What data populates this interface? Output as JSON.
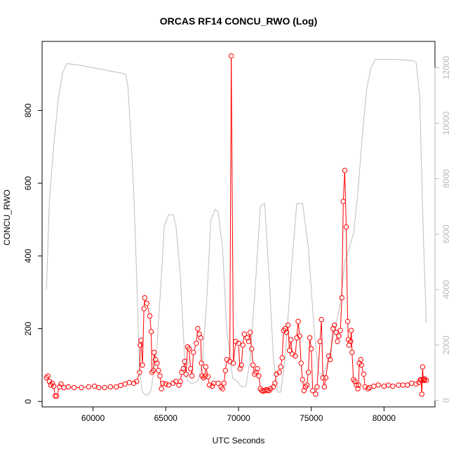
{
  "chart_data": {
    "type": "line",
    "title": "ORCAS RF14 CONCU_RWO (Log)",
    "xlabel": "UTC Seconds",
    "ylabel": "CONCU_RWO",
    "xlim": [
      56500,
      83500
    ],
    "ylim": [
      -15,
      990
    ],
    "y2lim": [
      -230,
      12950
    ],
    "x_ticks": [
      60000,
      65000,
      70000,
      75000,
      80000
    ],
    "y_ticks": [
      0,
      200,
      400,
      600,
      800
    ],
    "y2_ticks": [
      0,
      2000,
      4000,
      6000,
      8000,
      10000,
      12000
    ],
    "grid": false,
    "legend": "none",
    "colors": {
      "concu": "#ff0000",
      "altitude": "#bebebe",
      "axis": "#000000",
      "right_axis": "#b8b8b8"
    },
    "series": [
      {
        "axis": "left",
        "style": "points+lines",
        "points": [
          [
            56800,
            65
          ],
          [
            56900,
            70
          ],
          [
            57000,
            55
          ],
          [
            57100,
            45
          ],
          [
            57200,
            50
          ],
          [
            57300,
            42
          ],
          [
            57400,
            15
          ],
          [
            57500,
            15
          ],
          [
            57700,
            40
          ],
          [
            57800,
            48
          ],
          [
            58000,
            38
          ],
          [
            58300,
            40
          ],
          [
            58700,
            38
          ],
          [
            59200,
            38
          ],
          [
            59700,
            40
          ],
          [
            60100,
            42
          ],
          [
            60400,
            38
          ],
          [
            60800,
            38
          ],
          [
            61200,
            40
          ],
          [
            61600,
            40
          ],
          [
            61900,
            44
          ],
          [
            62200,
            48
          ],
          [
            62500,
            52
          ],
          [
            62800,
            50
          ],
          [
            63000,
            55
          ],
          [
            63200,
            80
          ],
          [
            63250,
            155
          ],
          [
            63300,
            168
          ],
          [
            63400,
            100
          ],
          [
            63500,
            255
          ],
          [
            63550,
            285
          ],
          [
            63700,
            270
          ],
          [
            63900,
            235
          ],
          [
            64000,
            192
          ],
          [
            64050,
            80
          ],
          [
            64150,
            85
          ],
          [
            64200,
            135
          ],
          [
            64300,
            115
          ],
          [
            64400,
            105
          ],
          [
            64500,
            85
          ],
          [
            64600,
            70
          ],
          [
            64700,
            35
          ],
          [
            64800,
            50
          ],
          [
            65000,
            48
          ],
          [
            65200,
            45
          ],
          [
            65500,
            50
          ],
          [
            65700,
            55
          ],
          [
            65900,
            45
          ],
          [
            66000,
            55
          ],
          [
            66100,
            80
          ],
          [
            66200,
            90
          ],
          [
            66300,
            110
          ],
          [
            66400,
            75
          ],
          [
            66500,
            150
          ],
          [
            66600,
            145
          ],
          [
            66700,
            90
          ],
          [
            66800,
            70
          ],
          [
            66900,
            135
          ],
          [
            67100,
            160
          ],
          [
            67200,
            200
          ],
          [
            67300,
            185
          ],
          [
            67400,
            175
          ],
          [
            67450,
            105
          ],
          [
            67500,
            70
          ],
          [
            67600,
            65
          ],
          [
            67700,
            70
          ],
          [
            67750,
            95
          ],
          [
            67900,
            68
          ],
          [
            68000,
            45
          ],
          [
            68200,
            42
          ],
          [
            68300,
            50
          ],
          [
            68600,
            50
          ],
          [
            68800,
            40
          ],
          [
            68900,
            35
          ],
          [
            69000,
            50
          ],
          [
            69100,
            85
          ],
          [
            69200,
            115
          ],
          [
            69400,
            110
          ],
          [
            69500,
            950
          ],
          [
            69650,
            105
          ],
          [
            69800,
            165
          ],
          [
            70000,
            160
          ],
          [
            70100,
            90
          ],
          [
            70200,
            100
          ],
          [
            70300,
            155
          ],
          [
            70400,
            185
          ],
          [
            70600,
            175
          ],
          [
            70700,
            165
          ],
          [
            70800,
            190
          ],
          [
            70900,
            145
          ],
          [
            71000,
            100
          ],
          [
            71100,
            75
          ],
          [
            71200,
            80
          ],
          [
            71300,
            90
          ],
          [
            71400,
            70
          ],
          [
            71500,
            35
          ],
          [
            71600,
            30
          ],
          [
            71700,
            28
          ],
          [
            71800,
            30
          ],
          [
            71900,
            32
          ],
          [
            72000,
            30
          ],
          [
            72100,
            30
          ],
          [
            72200,
            35
          ],
          [
            72400,
            40
          ],
          [
            72500,
            50
          ],
          [
            72600,
            75
          ],
          [
            72800,
            80
          ],
          [
            72900,
            95
          ],
          [
            73000,
            120
          ],
          [
            73100,
            195
          ],
          [
            73200,
            200
          ],
          [
            73300,
            190
          ],
          [
            73400,
            210
          ],
          [
            73500,
            140
          ],
          [
            73600,
            170
          ],
          [
            73700,
            130
          ],
          [
            73900,
            125
          ],
          [
            74000,
            175
          ],
          [
            74100,
            220
          ],
          [
            74200,
            180
          ],
          [
            74300,
            105
          ],
          [
            74400,
            60
          ],
          [
            74500,
            30
          ],
          [
            74600,
            40
          ],
          [
            74700,
            45
          ],
          [
            74800,
            80
          ],
          [
            74900,
            175
          ],
          [
            75000,
            145
          ],
          [
            75100,
            30
          ],
          [
            75300,
            20
          ],
          [
            75400,
            40
          ],
          [
            75600,
            165
          ],
          [
            75700,
            225
          ],
          [
            75800,
            65
          ],
          [
            75900,
            40
          ],
          [
            76000,
            65
          ],
          [
            76200,
            125
          ],
          [
            76300,
            115
          ],
          [
            76500,
            200
          ],
          [
            76600,
            210
          ],
          [
            76700,
            190
          ],
          [
            76800,
            165
          ],
          [
            76900,
            180
          ],
          [
            77000,
            195
          ],
          [
            77100,
            285
          ],
          [
            77200,
            550
          ],
          [
            77300,
            635
          ],
          [
            77400,
            480
          ],
          [
            77500,
            220
          ],
          [
            77550,
            170
          ],
          [
            77600,
            155
          ],
          [
            77700,
            165
          ],
          [
            77750,
            195
          ],
          [
            77800,
            135
          ],
          [
            77900,
            60
          ],
          [
            78000,
            55
          ],
          [
            78100,
            45
          ],
          [
            78200,
            35
          ],
          [
            78250,
            45
          ],
          [
            78300,
            105
          ],
          [
            78400,
            115
          ],
          [
            78450,
            100
          ],
          [
            78600,
            75
          ],
          [
            78700,
            40
          ],
          [
            78900,
            35
          ],
          [
            79000,
            38
          ],
          [
            79300,
            42
          ],
          [
            79600,
            45
          ],
          [
            80000,
            42
          ],
          [
            80300,
            45
          ],
          [
            80600,
            42
          ],
          [
            81000,
            45
          ],
          [
            81300,
            45
          ],
          [
            81600,
            45
          ],
          [
            81900,
            50
          ],
          [
            82200,
            48
          ],
          [
            82400,
            52
          ],
          [
            82500,
            60
          ],
          [
            82550,
            58
          ],
          [
            82600,
            20
          ],
          [
            82650,
            95
          ],
          [
            82700,
            60
          ],
          [
            82750,
            58
          ],
          [
            82800,
            62
          ],
          [
            82900,
            58
          ]
        ]
      },
      {
        "axis": "right",
        "style": "line",
        "points": [
          [
            56800,
            4000
          ],
          [
            57000,
            7200
          ],
          [
            57300,
            9200
          ],
          [
            57600,
            10800
          ],
          [
            57900,
            11800
          ],
          [
            58200,
            12150
          ],
          [
            59000,
            12100
          ],
          [
            60000,
            12000
          ],
          [
            61000,
            11900
          ],
          [
            62000,
            11800
          ],
          [
            62250,
            11750
          ],
          [
            62400,
            11300
          ],
          [
            62600,
            9500
          ],
          [
            62800,
            7500
          ],
          [
            63000,
            4500
          ],
          [
            63200,
            1000
          ],
          [
            63400,
            300
          ],
          [
            63600,
            200
          ],
          [
            63800,
            200
          ],
          [
            64000,
            400
          ],
          [
            64400,
            2000
          ],
          [
            64700,
            4500
          ],
          [
            64900,
            6300
          ],
          [
            65200,
            6700
          ],
          [
            65500,
            6700
          ],
          [
            65700,
            6300
          ],
          [
            66000,
            4500
          ],
          [
            66300,
            1500
          ],
          [
            66500,
            700
          ],
          [
            66800,
            600
          ],
          [
            67200,
            700
          ],
          [
            67500,
            1300
          ],
          [
            67800,
            3500
          ],
          [
            68100,
            6500
          ],
          [
            68400,
            6900
          ],
          [
            68600,
            6800
          ],
          [
            68900,
            5500
          ],
          [
            69200,
            2500
          ],
          [
            69600,
            800
          ],
          [
            69900,
            700
          ],
          [
            70200,
            500
          ],
          [
            70500,
            500
          ],
          [
            70800,
            1500
          ],
          [
            71200,
            4500
          ],
          [
            71500,
            7000
          ],
          [
            71800,
            7100
          ],
          [
            72100,
            4500
          ],
          [
            72400,
            1500
          ],
          [
            72700,
            300
          ],
          [
            72900,
            300
          ],
          [
            73200,
            1500
          ],
          [
            73600,
            4500
          ],
          [
            74000,
            7100
          ],
          [
            74400,
            7100
          ],
          [
            74800,
            5500
          ],
          [
            75200,
            2500
          ],
          [
            75500,
            1000
          ],
          [
            75800,
            900
          ],
          [
            76200,
            1500
          ],
          [
            76600,
            2500
          ],
          [
            77000,
            3500
          ],
          [
            77300,
            5000
          ],
          [
            77600,
            5500
          ],
          [
            77900,
            6000
          ],
          [
            78200,
            7500
          ],
          [
            78500,
            9500
          ],
          [
            78800,
            11200
          ],
          [
            79100,
            12000
          ],
          [
            79400,
            12300
          ],
          [
            80000,
            12300
          ],
          [
            81000,
            12300
          ],
          [
            82000,
            12250
          ],
          [
            82200,
            12200
          ],
          [
            82450,
            11000
          ],
          [
            82700,
            6000
          ],
          [
            82900,
            2800
          ]
        ]
      }
    ]
  }
}
